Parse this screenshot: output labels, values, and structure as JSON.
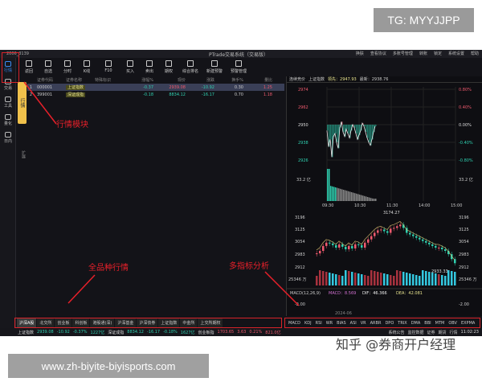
{
  "overlay": {
    "tg": "TG: MYYJJPP",
    "url": "www.zh-biyite-biyisports.com",
    "watermark": "知乎 @券商开户经理"
  },
  "window": {
    "title": "PTrade交易系统（交易版）",
    "account": "2006_3139"
  },
  "menu": [
    "换肤",
    "查看协议",
    "多账号管理",
    "转账",
    "锁定",
    "系统设置",
    "帮助"
  ],
  "sidebar": [
    {
      "label": "行情",
      "active": true
    },
    {
      "label": "交易"
    },
    {
      "label": "工具"
    },
    {
      "label": "量化"
    },
    {
      "label": "日内"
    }
  ],
  "toolbar": [
    "返回",
    "自选",
    "分时",
    "K线",
    "F10",
    "买入",
    "卖出",
    "期权",
    "综合排名",
    "新建预警",
    "预警管理"
  ],
  "vertical_tab": "行情",
  "extend": "扩展",
  "table": {
    "headers": [
      "",
      "证券代码",
      "证券名称",
      "特殊标识",
      "涨幅%",
      "现价",
      "涨跌",
      "换手%",
      "量比"
    ],
    "rows": [
      [
        "1",
        "000001",
        "上证指数",
        "",
        "-0.37",
        "2939.08",
        "-10.92",
        "0.30",
        "1.25"
      ],
      [
        "2",
        "399001",
        "深证成指",
        "",
        "-0.18",
        "8834.12",
        "-16.17",
        "0.70",
        "1.18"
      ]
    ]
  },
  "annotations": {
    "module": "行情模块",
    "all": "全品种行情",
    "multi": "多指标分析"
  },
  "chart": {
    "header_label": "连续竞价",
    "index": "上证指数",
    "lead_label": "领先：2947.93",
    "latest_label": "最新：2938.76",
    "intraday": {
      "price_ticks": [
        "2974",
        "2962",
        "2950",
        "2938",
        "2926"
      ],
      "pct_ticks": [
        "0.80%",
        "0.40%",
        "0.00%",
        "-0.40%",
        "-0.80%"
      ],
      "vol_label": "33.2 亿",
      "time_ticks": [
        "09:30",
        "10:30",
        "11:30",
        "14:00",
        "15:00"
      ],
      "prices": [
        2946,
        2935,
        2940,
        2928,
        2942,
        2944,
        2938,
        2934,
        2948,
        2952,
        2945,
        2942,
        2947,
        2944,
        2941,
        2946,
        2950,
        2948,
        2944,
        2940,
        2943,
        2946,
        2951,
        2949,
        2945,
        2941,
        2938,
        2936,
        2940,
        2945,
        2949
      ]
    },
    "kline": {
      "price_ticks": [
        "3196",
        "3125",
        "3054",
        "2983",
        "2912"
      ],
      "high_label": "3174.27",
      "low_label": "2933.33",
      "vol_label": "25346 万",
      "closes": [
        2995,
        3010,
        3040,
        3060,
        3055,
        3045,
        3030,
        3050,
        3035,
        3020,
        3040,
        3025,
        3050,
        3045,
        3030,
        3060,
        3080,
        3100,
        3120,
        3135,
        3140,
        3130,
        3120,
        3145,
        3150,
        3160,
        3170,
        3150,
        3120,
        3110,
        3100,
        3090,
        3080,
        3070,
        3060,
        3050,
        3040,
        3030,
        3030,
        3020,
        3010,
        2990,
        2960,
        2935
      ]
    },
    "macd": {
      "label": "MACD(12,26,9)",
      "macd": "MACD：8.569",
      "dif": "DIF：46.366",
      "dea": "DEA：42.081",
      "tick": "-2.00",
      "date": "2024-06"
    }
  },
  "bottom_tabs": [
    "沪深A股",
    "北交所",
    "创业板",
    "科创板",
    "港股通(深)",
    "沪深基金",
    "沪深债券",
    "上证指数",
    "中金所",
    "上交所期权"
  ],
  "indicators": [
    "MACD",
    "KDJ",
    "RSI",
    "WR",
    "BIAS",
    "ASI",
    "VR",
    "ARBR",
    "DPO",
    "TRIX",
    "DMA",
    "BBI",
    "MTM",
    "OBV",
    "EXPMA"
  ],
  "status": {
    "items": [
      {
        "name": "上证指数",
        "value": "2939.08",
        "chg": "-10.92",
        "pct": "-0.37%",
        "amt": "1227亿"
      },
      {
        "name": "深证成指",
        "value": "8834.12",
        "chg": "-16.17",
        "pct": "-0.18%",
        "amt": "1627亿"
      },
      {
        "name": "创业板指",
        "value": "1703.65",
        "chg": "3.63",
        "pct": "0.21%",
        "amt": "821.0亿"
      }
    ],
    "right": [
      "系统公告",
      "监控数据",
      "证券",
      "期货",
      "行情"
    ],
    "time": "11:02:23"
  },
  "colors": {
    "up": "#f05a6e",
    "down": "#2fd0b0",
    "accent": "#3b8cf5",
    "annotation": "#e8202a"
  }
}
